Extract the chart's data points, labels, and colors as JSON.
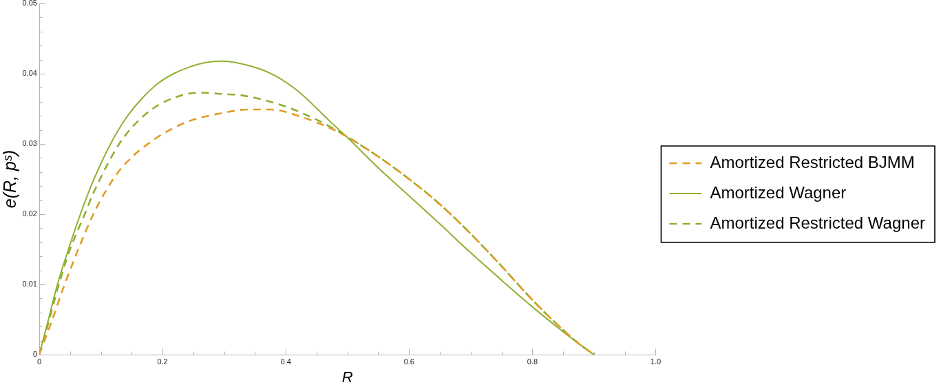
{
  "chart_data": {
    "type": "line",
    "xlabel": "R",
    "ylabel": "e(R, pˢ)",
    "xlim": [
      0,
      1
    ],
    "ylim": [
      0,
      0.05
    ],
    "xticks": [
      0,
      {
        "value": 0.05,
        "label": null
      },
      {
        "value": 0.1,
        "label": null
      },
      {
        "value": 0.15,
        "label": null
      },
      0.2,
      {
        "value": 0.25,
        "label": null
      },
      {
        "value": 0.3,
        "label": null
      },
      {
        "value": 0.35,
        "label": null
      },
      0.4,
      {
        "value": 0.45,
        "label": null
      },
      {
        "value": 0.5,
        "label": null
      },
      {
        "value": 0.55,
        "label": null
      },
      0.6,
      {
        "value": 0.65,
        "label": null
      },
      {
        "value": 0.7,
        "label": null
      },
      {
        "value": 0.75,
        "label": null
      },
      0.8,
      {
        "value": 0.85,
        "label": null
      },
      {
        "value": 0.9,
        "label": null
      },
      {
        "value": 0.95,
        "label": null
      },
      {
        "value": 1,
        "label": "1.0"
      }
    ],
    "yticks": [
      0,
      {
        "value": 0.002,
        "label": null
      },
      {
        "value": 0.004,
        "label": null
      },
      {
        "value": 0.006,
        "label": null
      },
      {
        "value": 0.008,
        "label": null
      },
      0.01,
      {
        "value": 0.012,
        "label": null
      },
      {
        "value": 0.014,
        "label": null
      },
      {
        "value": 0.016,
        "label": null
      },
      {
        "value": 0.018,
        "label": null
      },
      0.02,
      {
        "value": 0.022,
        "label": null
      },
      {
        "value": 0.024,
        "label": null
      },
      {
        "value": 0.026,
        "label": null
      },
      {
        "value": 0.028,
        "label": null
      },
      0.03,
      {
        "value": 0.032,
        "label": null
      },
      {
        "value": 0.034,
        "label": null
      },
      {
        "value": 0.036,
        "label": null
      },
      {
        "value": 0.038,
        "label": null
      },
      0.04,
      {
        "value": 0.042,
        "label": null
      },
      {
        "value": 0.044,
        "label": null
      },
      {
        "value": 0.046,
        "label": null
      },
      {
        "value": 0.048,
        "label": null
      },
      0.05
    ],
    "grid": false,
    "legend": "right",
    "marker": "none",
    "series": [
      {
        "name": "Amortized Restricted BJMM",
        "color": "#e19c24",
        "line_style": "dashed",
        "x": [
          0,
          0.02,
          0.0412,
          0.0878,
          0.11,
          0.13,
          0.155,
          0.1763,
          0.2,
          0.2415,
          0.2974,
          0.34,
          0.376,
          0.42,
          0.473,
          0.5,
          0.55,
          0.6,
          0.65,
          0.7,
          0.75,
          0.8,
          0.85,
          0.875,
          0.9
        ],
        "values": [
          0,
          0.0047,
          0.01,
          0.02,
          0.0236,
          0.0262,
          0.0285,
          0.03,
          0.0314,
          0.0332,
          0.0344,
          0.0349,
          0.0349,
          0.034,
          0.0322,
          0.031,
          0.0282,
          0.025,
          0.0214,
          0.0172,
          0.0126,
          0.0078,
          0.0035,
          0.0016,
          0
        ]
      },
      {
        "name": "Amortized Wagner",
        "color": "#8fb032",
        "line_style": "solid",
        "x": [
          0,
          0.0123,
          0.0296,
          0.0477,
          0.0668,
          0.085,
          0.1157,
          0.141,
          0.167,
          0.1925,
          0.218,
          0.242,
          0.27,
          0.297,
          0.346,
          0.383,
          0.42,
          0.473,
          0.5,
          0.55,
          0.6,
          0.65,
          0.7,
          0.75,
          0.8,
          0.845,
          0.87,
          0.9
        ],
        "values": [
          0,
          0.0041,
          0.01,
          0.0151,
          0.02,
          0.0242,
          0.03,
          0.0337,
          0.0365,
          0.0386,
          0.04,
          0.0409,
          0.0416,
          0.0418,
          0.041,
          0.0397,
          0.0375,
          0.0331,
          0.0309,
          0.0266,
          0.0226,
          0.0186,
          0.0145,
          0.0106,
          0.0068,
          0.0036,
          0.0019,
          0
        ]
      },
      {
        "name": "Amortized Restricted Wagner",
        "color": "#8fb032",
        "line_style": "dashed",
        "x": [
          0,
          0.0135,
          0.0319,
          0.0496,
          0.0738,
          0.0894,
          0.1297,
          0.153,
          0.1856,
          0.2229,
          0.26,
          0.2974,
          0.33,
          0.394,
          0.439,
          0.473,
          0.5,
          0.55,
          0.6,
          0.65,
          0.7,
          0.75,
          0.8,
          0.85,
          0.875,
          0.9
        ],
        "values": [
          0,
          0.0041,
          0.01,
          0.0149,
          0.02,
          0.0233,
          0.03,
          0.0326,
          0.0351,
          0.0367,
          0.0373,
          0.0371,
          0.0369,
          0.0355,
          0.0339,
          0.0324,
          0.031,
          0.0282,
          0.025,
          0.0214,
          0.0172,
          0.0126,
          0.0078,
          0.0035,
          0.0016,
          0
        ]
      }
    ]
  }
}
